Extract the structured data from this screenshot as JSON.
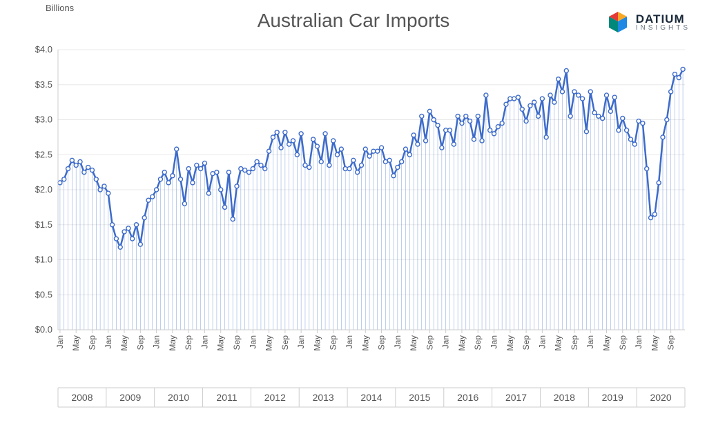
{
  "title": "Australian Car Imports",
  "y_axis_title": "Billions",
  "logo": {
    "name": "DATIUM",
    "subtitle": "INSIGHTS"
  },
  "chart": {
    "type": "line-with-droplines",
    "line_color": "#3d6bc9",
    "marker_fill": "#ffffff",
    "marker_stroke": "#3d6bc9",
    "marker_radius": 3,
    "line_width": 2.5,
    "dropline_width": 0.6,
    "dropline_color": "#3d6bc9",
    "grid_color": "#e8e8e8",
    "axis_color": "#cccccc",
    "background": "#ffffff",
    "ylim": [
      0.0,
      4.0
    ],
    "ytick_step": 0.5,
    "ytick_format": "$N.0",
    "years": [
      2008,
      2009,
      2010,
      2011,
      2012,
      2013,
      2014,
      2015,
      2016,
      2017,
      2018,
      2019,
      2020
    ],
    "month_labels": [
      "Jan",
      "May",
      "Sep"
    ],
    "values": [
      2.1,
      2.15,
      2.3,
      2.42,
      2.35,
      2.4,
      2.25,
      2.32,
      2.28,
      2.15,
      2.0,
      2.05,
      1.95,
      1.5,
      1.3,
      1.18,
      1.4,
      1.45,
      1.3,
      1.5,
      1.22,
      1.6,
      1.85,
      1.9,
      2.0,
      2.15,
      2.25,
      2.1,
      2.2,
      2.58,
      2.15,
      1.8,
      2.3,
      2.1,
      2.35,
      2.3,
      2.38,
      1.95,
      2.23,
      2.25,
      2.0,
      1.75,
      2.25,
      1.58,
      2.05,
      2.3,
      2.28,
      2.25,
      2.3,
      2.4,
      2.35,
      2.3,
      2.55,
      2.75,
      2.82,
      2.6,
      2.82,
      2.65,
      2.7,
      2.5,
      2.8,
      2.35,
      2.32,
      2.72,
      2.62,
      2.4,
      2.8,
      2.35,
      2.7,
      2.5,
      2.58,
      2.3,
      2.3,
      2.42,
      2.25,
      2.35,
      2.58,
      2.48,
      2.55,
      2.55,
      2.6,
      2.4,
      2.42,
      2.2,
      2.32,
      2.4,
      2.58,
      2.5,
      2.78,
      2.65,
      3.05,
      2.7,
      3.12,
      3.0,
      2.92,
      2.6,
      2.85,
      2.85,
      2.65,
      3.05,
      2.95,
      3.05,
      2.98,
      2.72,
      3.05,
      2.7,
      3.35,
      2.85,
      2.8,
      2.9,
      2.95,
      3.22,
      3.3,
      3.3,
      3.32,
      3.15,
      2.98,
      3.2,
      3.25,
      3.05,
      3.3,
      2.75,
      3.35,
      3.25,
      3.58,
      3.4,
      3.7,
      3.05,
      3.4,
      3.35,
      3.3,
      2.83,
      3.4,
      3.1,
      3.05,
      3.02,
      3.35,
      3.12,
      3.32,
      2.85,
      3.02,
      2.85,
      2.72,
      2.65,
      2.98,
      2.95,
      2.3,
      1.6,
      1.65,
      2.1,
      2.75,
      3.0,
      3.4,
      3.65,
      3.6,
      3.72
    ]
  }
}
